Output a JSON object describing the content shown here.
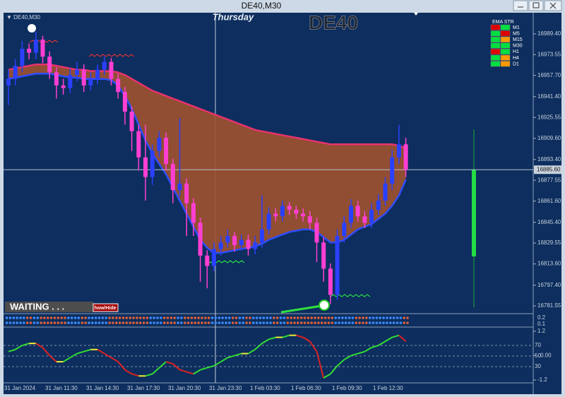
{
  "chart_data": {
    "type": "candlestick",
    "window_title": "DE40,M30",
    "chart_label": "DE40,M30",
    "symbol_label": "DE40",
    "day_label": "Thursday",
    "bull_color": "#2a40ff",
    "bear_color": "#ff3fd2",
    "open": [
      16950,
      16955,
      16965,
      16978,
      16975,
      16985,
      16972,
      16960,
      16950,
      16948,
      16958,
      16962,
      16950,
      16955,
      16962,
      16968,
      16955,
      16945,
      16930,
      16915,
      16895,
      16880,
      16900,
      16910,
      16890,
      16870,
      16875,
      16860,
      16845,
      16820,
      16812,
      16825,
      16830,
      16835,
      16828,
      16832,
      16825,
      16830,
      16840,
      16852,
      16850,
      16858,
      16855,
      16852,
      16850,
      16845,
      16830,
      16810,
      16790,
      16835,
      16845,
      16858,
      16850,
      16845,
      16855,
      16862,
      16875,
      16895,
      16905
    ],
    "high": [
      16962,
      16970,
      16984,
      16982,
      16991,
      16988,
      16976,
      16964,
      16955,
      16963,
      16968,
      16966,
      16960,
      16966,
      16972,
      16971,
      16959,
      16949,
      16934,
      16920,
      16920,
      16905,
      16915,
      16914,
      16894,
      16925,
      16879,
      16864,
      16849,
      16824,
      16830,
      16835,
      16840,
      16838,
      16836,
      16836,
      16835,
      16866,
      16857,
      16856,
      16862,
      16861,
      16858,
      16856,
      16854,
      16849,
      16834,
      16814,
      16840,
      16850,
      16863,
      16862,
      16854,
      16860,
      16867,
      16880,
      16901,
      16920,
      16910
    ],
    "low": [
      16935,
      16950,
      16960,
      16970,
      16970,
      16967,
      16955,
      16940,
      16943,
      16944,
      16953,
      16945,
      16946,
      16951,
      16958,
      16950,
      16940,
      16920,
      16900,
      16885,
      16862,
      16874,
      16895,
      16885,
      16860,
      16865,
      16835,
      16835,
      16800,
      16795,
      16808,
      16820,
      16826,
      16823,
      16824,
      16820,
      16821,
      16826,
      16836,
      16846,
      16846,
      16851,
      16848,
      16846,
      16840,
      16815,
      16800,
      16783,
      16786,
      16830,
      16841,
      16846,
      16841,
      16841,
      16851,
      16858,
      16870,
      16890,
      16880
    ],
    "close": [
      16955,
      16965,
      16978,
      16975,
      16985,
      16972,
      16960,
      16950,
      16948,
      16958,
      16962,
      16950,
      16955,
      16962,
      16968,
      16955,
      16945,
      16930,
      16915,
      16895,
      16880,
      16900,
      16910,
      16890,
      16870,
      16875,
      16860,
      16845,
      16820,
      16812,
      16825,
      16830,
      16835,
      16828,
      16832,
      16825,
      16830,
      16840,
      16852,
      16850,
      16858,
      16855,
      16852,
      16850,
      16845,
      16830,
      16810,
      16790,
      16835,
      16845,
      16858,
      16850,
      16845,
      16855,
      16862,
      16875,
      16895,
      16905,
      16885.6
    ],
    "ema_upper": {
      "color": "#e8326e",
      "values": [
        16962,
        16963,
        16964,
        16965,
        16966,
        16966,
        16966,
        16965,
        16964,
        16963,
        16962,
        16962,
        16961,
        16961,
        16961,
        16961,
        16960,
        16958,
        16955,
        16952,
        16949,
        16946,
        16944,
        16942,
        16940,
        16938,
        16936,
        16934,
        16932,
        16930,
        16928,
        16926,
        16924,
        16922,
        16920,
        16918,
        16916,
        16915,
        16914,
        16913,
        16912,
        16911,
        16910,
        16909,
        16908,
        16907,
        16906,
        16905,
        16905,
        16905,
        16905,
        16905,
        16905,
        16905,
        16905,
        16905,
        16905,
        16904,
        16902
      ]
    },
    "ema_lower": {
      "color": "#2f4dff",
      "values": [
        16955,
        16956,
        16957,
        16958,
        16959,
        16959,
        16959,
        16958,
        16957,
        16956,
        16956,
        16955,
        16955,
        16955,
        16955,
        16954,
        16950,
        16942,
        16932,
        16920,
        16908,
        16898,
        16890,
        16882,
        16872,
        16862,
        16852,
        16842,
        16832,
        16826,
        16822,
        16822,
        16823,
        16824,
        16825,
        16826,
        16827,
        16829,
        16832,
        16834,
        16836,
        16838,
        16839,
        16840,
        16840,
        16838,
        16834,
        16830,
        16830,
        16832,
        16836,
        16840,
        16842,
        16844,
        16848,
        16852,
        16858,
        16866,
        16878
      ]
    },
    "band_color": "#a0522d",
    "ylim": [
      16776.7,
      17003.4
    ],
    "yticks": [
      {
        "value": 16989.4,
        "label": "16989.40"
      },
      {
        "value": 16973.55,
        "label": "16973.55"
      },
      {
        "value": 16957.7,
        "label": "16957.70"
      },
      {
        "value": 16941.4,
        "label": "16941.40"
      },
      {
        "value": 16925.55,
        "label": "16925.55"
      },
      {
        "value": 16909.6,
        "label": "16909.60"
      },
      {
        "value": 16893.4,
        "label": "16893.40"
      },
      {
        "value": 16877.55,
        "label": "16877.55"
      },
      {
        "value": 16861.6,
        "label": "16861.60"
      },
      {
        "value": 16845.4,
        "label": "16845.40"
      },
      {
        "value": 16829.55,
        "label": "16829.55"
      },
      {
        "value": 16813.6,
        "label": "16813.60"
      },
      {
        "value": 16797.4,
        "label": "16797.40"
      },
      {
        "value": 16781.55,
        "label": "16781.55"
      }
    ],
    "last_price": {
      "value": 16885.6,
      "label": "16885.60"
    },
    "time_labels": [
      "31 Jan 2024",
      "31 Jan 11:30",
      "31 Jan 14:30",
      "31 Jan 17:30",
      "31 Jan 20:30",
      "31 Jan 23:30",
      "1 Feb 03:30",
      "1 Feb 06:30",
      "1 Feb 09:30",
      "1 Feb 12:30"
    ],
    "ema_str": {
      "title": "EMA STR",
      "rows": [
        {
          "label": "M1",
          "colors": [
            "#e00000",
            "#00e040"
          ]
        },
        {
          "label": "M5",
          "colors": [
            "#00e040",
            "#e00000"
          ]
        },
        {
          "label": "M15",
          "colors": [
            "#00e040",
            "#ff9900"
          ]
        },
        {
          "label": "M30",
          "colors": [
            "#00e040",
            "#00e040"
          ]
        },
        {
          "label": "H1",
          "colors": [
            "#e00000",
            "#00e040"
          ]
        },
        {
          "label": "H4",
          "colors": [
            "#00e040",
            "#ff9900"
          ]
        },
        {
          "label": "D1",
          "colors": [
            "#00e040",
            "#ff9900"
          ]
        }
      ]
    },
    "status": "WAITING . . .",
    "button": "how/Hide",
    "strip": {
      "ylim": [
        0.067,
        0.244
      ],
      "yticks": [
        0.2,
        0.1
      ]
    },
    "oscillator": {
      "ylim": [
        -1.34,
        1.37
      ],
      "yticks": [
        1.2,
        {
          "value": 0,
          "label": "0.00"
        },
        -1.2
      ],
      "y2lim": [
        -0.7,
        103.3
      ],
      "y2ticks": [
        70,
        50,
        30
      ],
      "values": [
        0.2,
        0.3,
        0.5,
        0.6,
        0.6,
        0.4,
        0.0,
        -0.3,
        -0.3,
        -0.1,
        0.1,
        0.2,
        0.3,
        0.3,
        0.1,
        -0.1,
        -0.3,
        -0.7,
        -0.9,
        -1.0,
        -1.0,
        -0.9,
        -0.6,
        -0.3,
        -0.4,
        -0.7,
        -0.8,
        -0.9,
        -0.7,
        -0.6,
        -0.5,
        -0.3,
        -0.1,
        0.0,
        0.1,
        0.1,
        0.3,
        0.6,
        0.8,
        0.9,
        0.9,
        1.0,
        1.0,
        0.9,
        0.7,
        0.2,
        -1.1,
        -0.9,
        -0.5,
        -0.2,
        0.0,
        0.1,
        0.2,
        0.4,
        0.5,
        0.7,
        0.9,
        1.0,
        0.7
      ]
    }
  }
}
